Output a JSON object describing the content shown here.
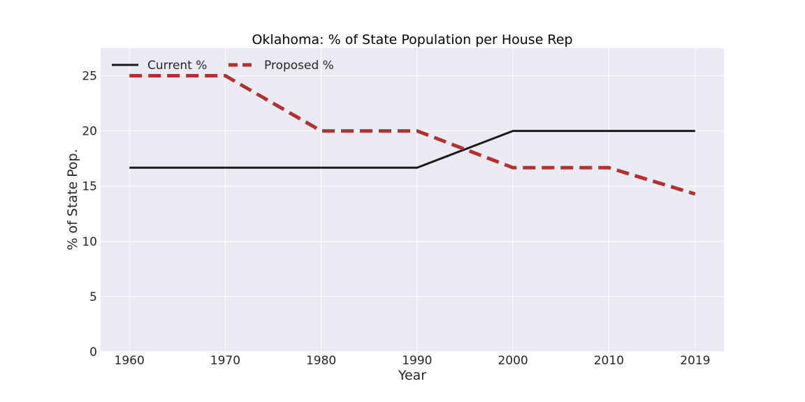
{
  "chart_data": {
    "type": "line",
    "title": "Oklahoma: % of State Population per House Rep",
    "xlabel": "Year",
    "ylabel": "% of State Pop.",
    "x": [
      1960,
      1970,
      1980,
      1990,
      2000,
      2010,
      2019
    ],
    "x_tick_labels": [
      "1960",
      "1970",
      "1980",
      "1990",
      "2000",
      "2010",
      "2019"
    ],
    "y_ticks": [
      0,
      5,
      10,
      15,
      20,
      25
    ],
    "ylim": [
      0,
      27.5
    ],
    "xlim": [
      1957,
      2022
    ],
    "grid": true,
    "legend_position": "top-left",
    "background": "#eaeaf2",
    "series": [
      {
        "name": "Current %",
        "values": [
          16.67,
          16.67,
          16.67,
          16.67,
          20,
          20,
          20
        ],
        "color": "#1a1a1a",
        "style": "solid"
      },
      {
        "name": "Proposed %",
        "values": [
          25,
          25,
          20,
          20,
          16.67,
          16.67,
          14.29
        ],
        "color": "#b23234",
        "style": "dashed"
      }
    ]
  }
}
